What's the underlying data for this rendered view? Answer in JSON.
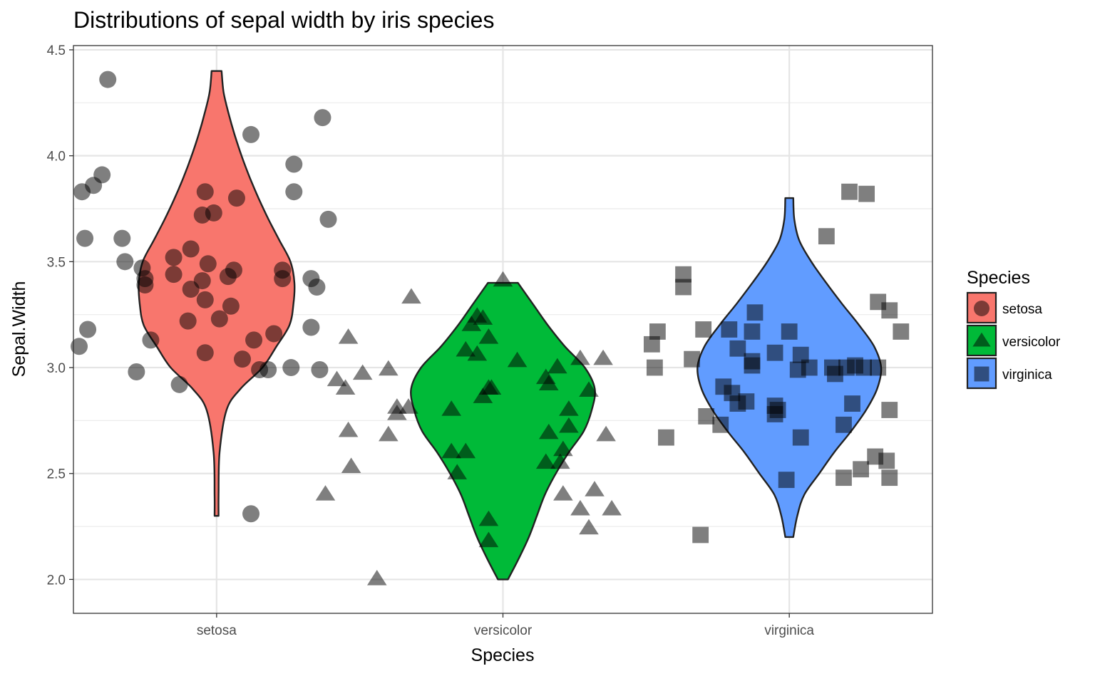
{
  "chart_data": {
    "type": "violin",
    "title": "Distributions of sepal width by iris species",
    "xlabel": "Species",
    "ylabel": "Sepal.Width",
    "categories": [
      "setosa",
      "versicolor",
      "virginica"
    ],
    "ylim": [
      1.84,
      4.52
    ],
    "yticks": [
      2.0,
      2.5,
      3.0,
      3.5,
      4.0,
      4.5
    ],
    "ytick_labels": [
      "2.0",
      "2.5",
      "3.0",
      "3.5",
      "4.0",
      "4.5"
    ],
    "grid": true,
    "legend": {
      "title": "Species",
      "position": "right",
      "entries": [
        {
          "label": "setosa",
          "color": "#F8766D",
          "shape": "circle"
        },
        {
          "label": "versicolor",
          "color": "#00BA38",
          "shape": "triangle"
        },
        {
          "label": "virginica",
          "color": "#619CFF",
          "shape": "square"
        }
      ]
    },
    "series": [
      {
        "name": "setosa",
        "color": "#F8766D",
        "shape": "circle",
        "violin": {
          "y": [
            2.3,
            2.4,
            2.6,
            2.8,
            2.9,
            3.0,
            3.1,
            3.2,
            3.3,
            3.4,
            3.5,
            3.6,
            3.7,
            3.8,
            3.9,
            4.0,
            4.1,
            4.2,
            4.3,
            4.4
          ],
          "width": [
            0.02,
            0.02,
            0.03,
            0.1,
            0.24,
            0.46,
            0.6,
            0.73,
            0.77,
            0.78,
            0.74,
            0.63,
            0.52,
            0.42,
            0.33,
            0.25,
            0.18,
            0.12,
            0.07,
            0.05
          ]
        },
        "points": [
          {
            "x": 0.62,
            "y": 4.36
          },
          {
            "x": 1.37,
            "y": 4.18
          },
          {
            "x": 1.12,
            "y": 4.1
          },
          {
            "x": 0.6,
            "y": 3.91
          },
          {
            "x": 1.27,
            "y": 3.96
          },
          {
            "x": 0.57,
            "y": 3.86
          },
          {
            "x": 0.53,
            "y": 3.83
          },
          {
            "x": 0.96,
            "y": 3.83
          },
          {
            "x": 1.07,
            "y": 3.8
          },
          {
            "x": 1.27,
            "y": 3.83
          },
          {
            "x": 0.99,
            "y": 3.73
          },
          {
            "x": 0.95,
            "y": 3.72
          },
          {
            "x": 1.39,
            "y": 3.7
          },
          {
            "x": 0.54,
            "y": 3.61
          },
          {
            "x": 0.67,
            "y": 3.61
          },
          {
            "x": 0.91,
            "y": 3.56
          },
          {
            "x": 0.85,
            "y": 3.52
          },
          {
            "x": 0.68,
            "y": 3.5
          },
          {
            "x": 0.74,
            "y": 3.47
          },
          {
            "x": 0.97,
            "y": 3.49
          },
          {
            "x": 1.06,
            "y": 3.46
          },
          {
            "x": 1.23,
            "y": 3.46
          },
          {
            "x": 0.75,
            "y": 3.42
          },
          {
            "x": 0.85,
            "y": 3.44
          },
          {
            "x": 1.04,
            "y": 3.43
          },
          {
            "x": 1.33,
            "y": 3.42
          },
          {
            "x": 0.95,
            "y": 3.41
          },
          {
            "x": 1.23,
            "y": 3.42
          },
          {
            "x": 0.75,
            "y": 3.39
          },
          {
            "x": 0.91,
            "y": 3.37
          },
          {
            "x": 1.35,
            "y": 3.38
          },
          {
            "x": 0.96,
            "y": 3.32
          },
          {
            "x": 1.05,
            "y": 3.29
          },
          {
            "x": 1.01,
            "y": 3.23
          },
          {
            "x": 0.9,
            "y": 3.22
          },
          {
            "x": 0.55,
            "y": 3.18
          },
          {
            "x": 1.33,
            "y": 3.19
          },
          {
            "x": 1.2,
            "y": 3.16
          },
          {
            "x": 0.77,
            "y": 3.13
          },
          {
            "x": 1.13,
            "y": 3.13
          },
          {
            "x": 0.52,
            "y": 3.1
          },
          {
            "x": 0.96,
            "y": 3.07
          },
          {
            "x": 1.09,
            "y": 3.04
          },
          {
            "x": 1.26,
            "y": 3.0
          },
          {
            "x": 1.18,
            "y": 2.99
          },
          {
            "x": 1.15,
            "y": 2.99
          },
          {
            "x": 1.36,
            "y": 2.99
          },
          {
            "x": 0.72,
            "y": 2.98
          },
          {
            "x": 0.87,
            "y": 2.92
          },
          {
            "x": 1.12,
            "y": 2.31
          }
        ]
      },
      {
        "name": "versicolor",
        "color": "#00BA38",
        "shape": "triangle",
        "violin": {
          "y": [
            2.0,
            2.1,
            2.2,
            2.3,
            2.4,
            2.5,
            2.6,
            2.7,
            2.8,
            2.9,
            3.0,
            3.1,
            3.2,
            3.3,
            3.4
          ],
          "width": [
            0.05,
            0.16,
            0.26,
            0.34,
            0.42,
            0.53,
            0.66,
            0.81,
            0.89,
            0.92,
            0.82,
            0.62,
            0.45,
            0.3,
            0.15
          ]
        },
        "points": [
          {
            "x": 2.0,
            "y": 3.41
          },
          {
            "x": 1.68,
            "y": 3.33
          },
          {
            "x": 1.91,
            "y": 3.24
          },
          {
            "x": 1.93,
            "y": 3.23
          },
          {
            "x": 1.89,
            "y": 3.2
          },
          {
            "x": 1.95,
            "y": 3.14
          },
          {
            "x": 1.46,
            "y": 3.14
          },
          {
            "x": 1.87,
            "y": 3.08
          },
          {
            "x": 1.91,
            "y": 3.06
          },
          {
            "x": 2.35,
            "y": 3.04
          },
          {
            "x": 2.27,
            "y": 3.04
          },
          {
            "x": 2.05,
            "y": 3.03
          },
          {
            "x": 2.19,
            "y": 3.0
          },
          {
            "x": 1.51,
            "y": 2.97
          },
          {
            "x": 1.6,
            "y": 2.99
          },
          {
            "x": 2.15,
            "y": 2.95
          },
          {
            "x": 1.42,
            "y": 2.94
          },
          {
            "x": 2.16,
            "y": 2.92
          },
          {
            "x": 1.45,
            "y": 2.9
          },
          {
            "x": 1.95,
            "y": 2.9
          },
          {
            "x": 1.96,
            "y": 2.9
          },
          {
            "x": 2.3,
            "y": 2.89
          },
          {
            "x": 1.93,
            "y": 2.86
          },
          {
            "x": 1.63,
            "y": 2.81
          },
          {
            "x": 1.67,
            "y": 2.81
          },
          {
            "x": 2.23,
            "y": 2.8
          },
          {
            "x": 1.63,
            "y": 2.78
          },
          {
            "x": 1.82,
            "y": 2.8
          },
          {
            "x": 2.23,
            "y": 2.72
          },
          {
            "x": 1.46,
            "y": 2.7
          },
          {
            "x": 2.16,
            "y": 2.69
          },
          {
            "x": 1.6,
            "y": 2.68
          },
          {
            "x": 2.36,
            "y": 2.68
          },
          {
            "x": 2.21,
            "y": 2.61
          },
          {
            "x": 1.87,
            "y": 2.6
          },
          {
            "x": 1.82,
            "y": 2.6
          },
          {
            "x": 2.2,
            "y": 2.55
          },
          {
            "x": 2.15,
            "y": 2.55
          },
          {
            "x": 1.47,
            "y": 2.53
          },
          {
            "x": 1.84,
            "y": 2.5
          },
          {
            "x": 2.32,
            "y": 2.42
          },
          {
            "x": 1.38,
            "y": 2.4
          },
          {
            "x": 2.21,
            "y": 2.4
          },
          {
            "x": 2.27,
            "y": 2.33
          },
          {
            "x": 2.38,
            "y": 2.33
          },
          {
            "x": 1.95,
            "y": 2.28
          },
          {
            "x": 2.3,
            "y": 2.24
          },
          {
            "x": 1.95,
            "y": 2.18
          },
          {
            "x": 1.56,
            "y": 2.0
          }
        ]
      },
      {
        "name": "virginica",
        "color": "#619CFF",
        "shape": "square",
        "violin": {
          "y": [
            2.2,
            2.3,
            2.4,
            2.5,
            2.6,
            2.7,
            2.8,
            2.9,
            3.0,
            3.1,
            3.2,
            3.3,
            3.4,
            3.5,
            3.6,
            3.7,
            3.8
          ],
          "width": [
            0.04,
            0.08,
            0.15,
            0.3,
            0.45,
            0.62,
            0.77,
            0.88,
            0.92,
            0.85,
            0.7,
            0.53,
            0.37,
            0.22,
            0.1,
            0.05,
            0.04
          ]
        },
        "points": [
          {
            "x": 3.21,
            "y": 3.83
          },
          {
            "x": 3.27,
            "y": 3.82
          },
          {
            "x": 3.13,
            "y": 3.62
          },
          {
            "x": 2.63,
            "y": 3.44
          },
          {
            "x": 2.63,
            "y": 3.38
          },
          {
            "x": 3.31,
            "y": 3.31
          },
          {
            "x": 3.35,
            "y": 3.27
          },
          {
            "x": 2.88,
            "y": 3.26
          },
          {
            "x": 2.7,
            "y": 3.18
          },
          {
            "x": 2.79,
            "y": 3.18
          },
          {
            "x": 2.87,
            "y": 3.17
          },
          {
            "x": 3.0,
            "y": 3.17
          },
          {
            "x": 2.54,
            "y": 3.17
          },
          {
            "x": 3.39,
            "y": 3.17
          },
          {
            "x": 2.52,
            "y": 3.11
          },
          {
            "x": 2.82,
            "y": 3.09
          },
          {
            "x": 2.95,
            "y": 3.07
          },
          {
            "x": 3.04,
            "y": 3.06
          },
          {
            "x": 2.66,
            "y": 3.04
          },
          {
            "x": 2.87,
            "y": 3.03
          },
          {
            "x": 2.87,
            "y": 3.01
          },
          {
            "x": 3.07,
            "y": 3.0
          },
          {
            "x": 3.15,
            "y": 3.0
          },
          {
            "x": 3.23,
            "y": 3.01
          },
          {
            "x": 3.2,
            "y": 3.0
          },
          {
            "x": 3.26,
            "y": 3.0
          },
          {
            "x": 3.31,
            "y": 3.0
          },
          {
            "x": 3.03,
            "y": 2.99
          },
          {
            "x": 2.53,
            "y": 3.0
          },
          {
            "x": 3.16,
            "y": 2.97
          },
          {
            "x": 2.77,
            "y": 2.91
          },
          {
            "x": 2.8,
            "y": 2.88
          },
          {
            "x": 2.85,
            "y": 2.84
          },
          {
            "x": 2.82,
            "y": 2.83
          },
          {
            "x": 2.95,
            "y": 2.82
          },
          {
            "x": 2.96,
            "y": 2.8
          },
          {
            "x": 3.22,
            "y": 2.83
          },
          {
            "x": 3.35,
            "y": 2.8
          },
          {
            "x": 2.95,
            "y": 2.78
          },
          {
            "x": 2.71,
            "y": 2.77
          },
          {
            "x": 2.76,
            "y": 2.73
          },
          {
            "x": 3.19,
            "y": 2.73
          },
          {
            "x": 3.04,
            "y": 2.67
          },
          {
            "x": 2.57,
            "y": 2.67
          },
          {
            "x": 3.3,
            "y": 2.58
          },
          {
            "x": 3.34,
            "y": 2.56
          },
          {
            "x": 3.25,
            "y": 2.52
          },
          {
            "x": 3.19,
            "y": 2.48
          },
          {
            "x": 3.35,
            "y": 2.48
          },
          {
            "x": 2.99,
            "y": 2.47
          },
          {
            "x": 2.69,
            "y": 2.21
          }
        ]
      }
    ]
  }
}
